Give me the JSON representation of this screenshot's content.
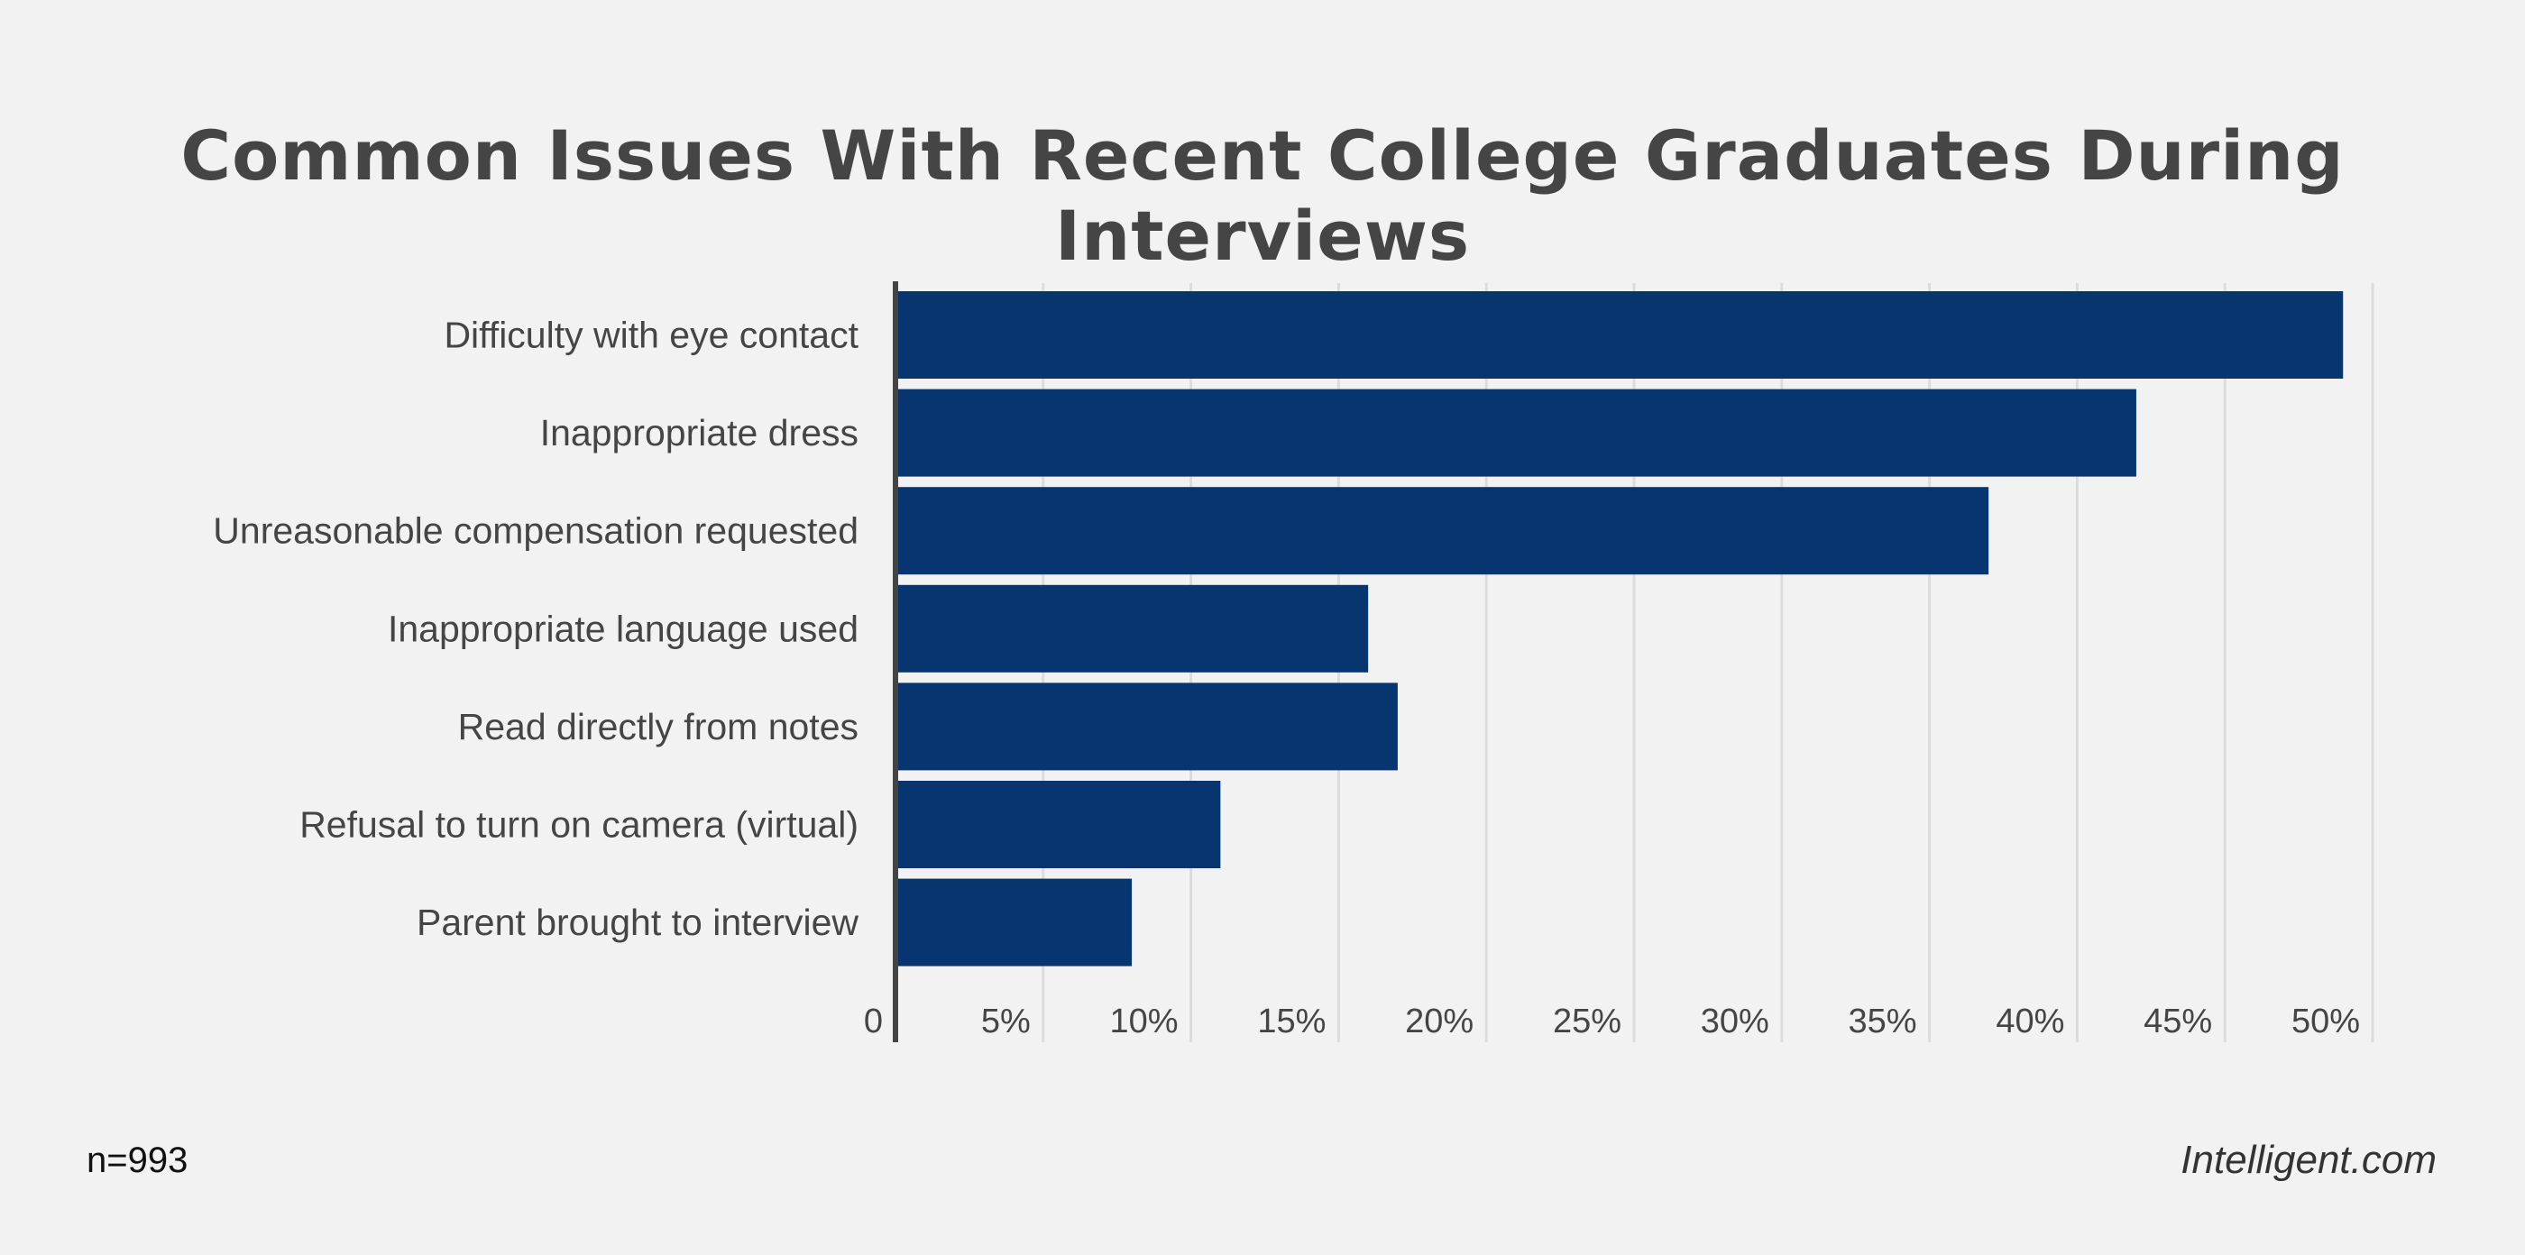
{
  "chart_data": {
    "type": "bar",
    "orientation": "horizontal",
    "title": "Common Issues With Recent College Graduates During Interviews",
    "categories": [
      "Difficulty with eye contact",
      "Inappropriate dress",
      "Unreasonable compensation requested",
      "Inappropriate language used",
      "Read directly from notes",
      "Refusal to turn on camera (virtual)",
      "Parent brought to interview"
    ],
    "values": [
      49,
      42,
      37,
      16,
      17,
      11,
      8
    ],
    "xlim": [
      0,
      50
    ],
    "xticks": [
      0,
      5,
      10,
      15,
      20,
      25,
      30,
      35,
      40,
      45,
      50
    ],
    "xtick_labels": [
      "0",
      "5%",
      "10%",
      "15%",
      "20%",
      "25%",
      "30%",
      "35%",
      "40%",
      "45%",
      "50%"
    ],
    "xlabel": "",
    "ylabel": "",
    "grid": "vertical",
    "bar_color": "#073570"
  },
  "footer": {
    "sample": "n=993",
    "brand": "Intelligent.com"
  }
}
